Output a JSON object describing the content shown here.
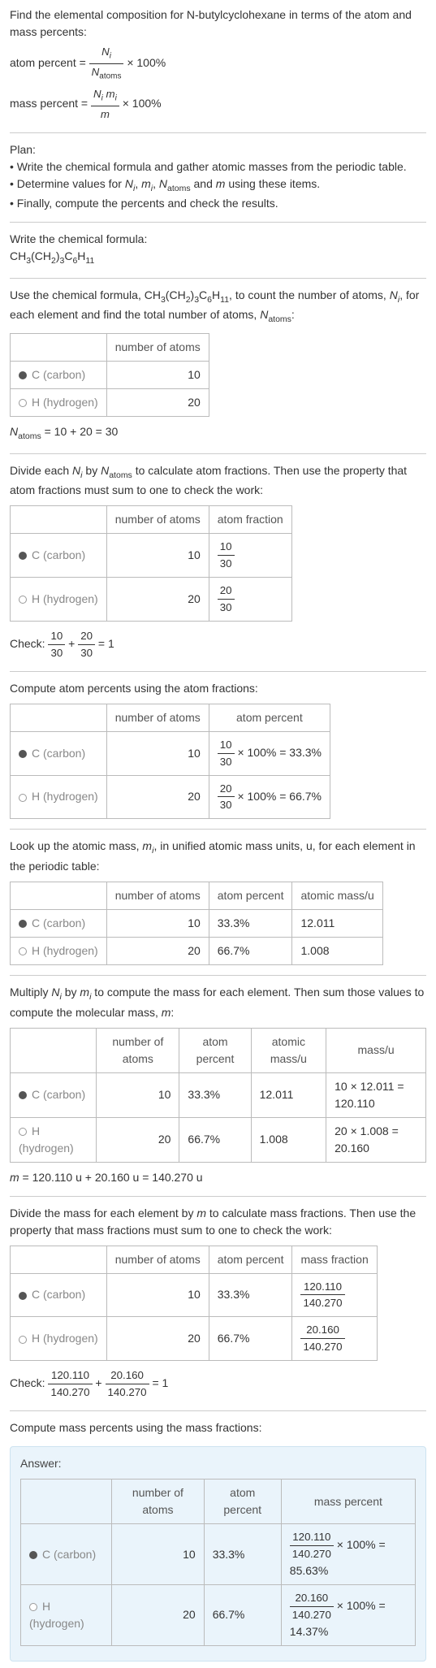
{
  "intro": {
    "line1": "Find the elemental composition for N-butylcyclohexane in terms of the atom and mass percents:",
    "atom_percent_label": "atom percent = ",
    "atom_percent_formula_html": "<span class='frac'><span class='num'><i>N<sub>i</sub></i></span><span class='den'><i>N</i><sub>atoms</sub></span></span> × 100%",
    "mass_percent_label": "mass percent = ",
    "mass_percent_formula_html": "<span class='frac'><span class='num'><i>N<sub>i</sub> m<sub>i</sub></i></span><span class='den'><i>m</i></span></span> × 100%"
  },
  "plan": {
    "title": "Plan:",
    "items": [
      "Write the chemical formula and gather atomic masses from the periodic table.",
      "Determine values for <i>N<sub>i</sub></i>, <i>m<sub>i</sub></i>, <i>N</i><sub>atoms</sub> and <i>m</i> using these items.",
      "Finally, compute the percents and check the results."
    ]
  },
  "chemFormula": {
    "title": "Write the chemical formula:",
    "formula_html": "CH<sub>3</sub>(CH<sub>2</sub>)<sub>3</sub>C<sub>6</sub>H<sub>11</sub>"
  },
  "countAtoms": {
    "intro_html": "Use the chemical formula, CH<sub>3</sub>(CH<sub>2</sub>)<sub>3</sub>C<sub>6</sub>H<sub>11</sub>, to count the number of atoms, <i>N<sub>i</sub></i>, for each element and find the total number of atoms, <i>N</i><sub>atoms</sub>:",
    "headers": [
      "",
      "number of atoms"
    ],
    "rows": [
      {
        "swatch": "carbon",
        "label": "C (carbon)",
        "value": "10"
      },
      {
        "swatch": "hydrogen",
        "label": "H (hydrogen)",
        "value": "20"
      }
    ],
    "sum_html": "<i>N</i><sub>atoms</sub> = 10 + 20 = 30"
  },
  "atomFractions": {
    "intro_html": "Divide each <i>N<sub>i</sub></i> by <i>N</i><sub>atoms</sub> to calculate atom fractions. Then use the property that atom fractions must sum to one to check the work:",
    "headers": [
      "",
      "number of atoms",
      "atom fraction"
    ],
    "rows": [
      {
        "swatch": "carbon",
        "label": "C (carbon)",
        "atoms": "10",
        "frac_html": "<span class='frac'><span class='num'>10</span><span class='den'>30</span></span>"
      },
      {
        "swatch": "hydrogen",
        "label": "H (hydrogen)",
        "atoms": "20",
        "frac_html": "<span class='frac'><span class='num'>20</span><span class='den'>30</span></span>"
      }
    ],
    "check_html": "Check: <span class='frac'><span class='num'>10</span><span class='den'>30</span></span> + <span class='frac'><span class='num'>20</span><span class='den'>30</span></span> = 1"
  },
  "atomPercents": {
    "intro": "Compute atom percents using the atom fractions:",
    "headers": [
      "",
      "number of atoms",
      "atom percent"
    ],
    "rows": [
      {
        "swatch": "carbon",
        "label": "C (carbon)",
        "atoms": "10",
        "pct_html": "<span class='frac'><span class='num'>10</span><span class='den'>30</span></span> × 100% = 33.3%"
      },
      {
        "swatch": "hydrogen",
        "label": "H (hydrogen)",
        "atoms": "20",
        "pct_html": "<span class='frac'><span class='num'>20</span><span class='den'>30</span></span> × 100% = 66.7%"
      }
    ]
  },
  "atomicMass": {
    "intro_html": "Look up the atomic mass, <i>m<sub>i</sub></i>, in unified atomic mass units, u, for each element in the periodic table:",
    "headers": [
      "",
      "number of atoms",
      "atom percent",
      "atomic mass/u"
    ],
    "rows": [
      {
        "swatch": "carbon",
        "label": "C (carbon)",
        "atoms": "10",
        "pct": "33.3%",
        "mass": "12.011"
      },
      {
        "swatch": "hydrogen",
        "label": "H (hydrogen)",
        "atoms": "20",
        "pct": "66.7%",
        "mass": "1.008"
      }
    ]
  },
  "molecularMass": {
    "intro_html": "Multiply <i>N<sub>i</sub></i> by <i>m<sub>i</sub></i> to compute the mass for each element. Then sum those values to compute the molecular mass, <i>m</i>:",
    "headers": [
      "",
      "number of atoms",
      "atom percent",
      "atomic mass/u",
      "mass/u"
    ],
    "rows": [
      {
        "swatch": "carbon",
        "label": "C (carbon)",
        "atoms": "10",
        "pct": "33.3%",
        "amass": "12.011",
        "calc": "10 × 12.011 = 120.110"
      },
      {
        "swatch": "hydrogen",
        "label": "H (hydrogen)",
        "atoms": "20",
        "pct": "66.7%",
        "amass": "1.008",
        "calc": "20 × 1.008 = 20.160"
      }
    ],
    "sum_html": "<i>m</i> = 120.110 u + 20.160 u = 140.270 u"
  },
  "massFractions": {
    "intro_html": "Divide the mass for each element by <i>m</i> to calculate mass fractions. Then use the property that mass fractions must sum to one to check the work:",
    "headers": [
      "",
      "number of atoms",
      "atom percent",
      "mass fraction"
    ],
    "rows": [
      {
        "swatch": "carbon",
        "label": "C (carbon)",
        "atoms": "10",
        "pct": "33.3%",
        "frac_html": "<span class='frac'><span class='num'>120.110</span><span class='den'>140.270</span></span>"
      },
      {
        "swatch": "hydrogen",
        "label": "H (hydrogen)",
        "atoms": "20",
        "pct": "66.7%",
        "frac_html": "<span class='frac'><span class='num'>20.160</span><span class='den'>140.270</span></span>"
      }
    ],
    "check_html": "Check: <span class='frac'><span class='num'>120.110</span><span class='den'>140.270</span></span> + <span class='frac'><span class='num'>20.160</span><span class='den'>140.270</span></span> = 1"
  },
  "massPercents": {
    "intro": "Compute mass percents using the mass fractions:"
  },
  "answer": {
    "title": "Answer:",
    "headers": [
      "",
      "number of atoms",
      "atom percent",
      "mass percent"
    ],
    "rows": [
      {
        "swatch": "carbon",
        "label": "C (carbon)",
        "atoms": "10",
        "pct": "33.3%",
        "mass_html": "<span class='frac'><span class='num'>120.110</span><span class='den'>140.270</span></span> × 100% = 85.63%"
      },
      {
        "swatch": "hydrogen",
        "label": "H (hydrogen)",
        "atoms": "20",
        "pct": "66.7%",
        "mass_html": "<span class='frac'><span class='num'>20.160</span><span class='den'>140.270</span></span> × 100% = 14.37%"
      }
    ]
  }
}
